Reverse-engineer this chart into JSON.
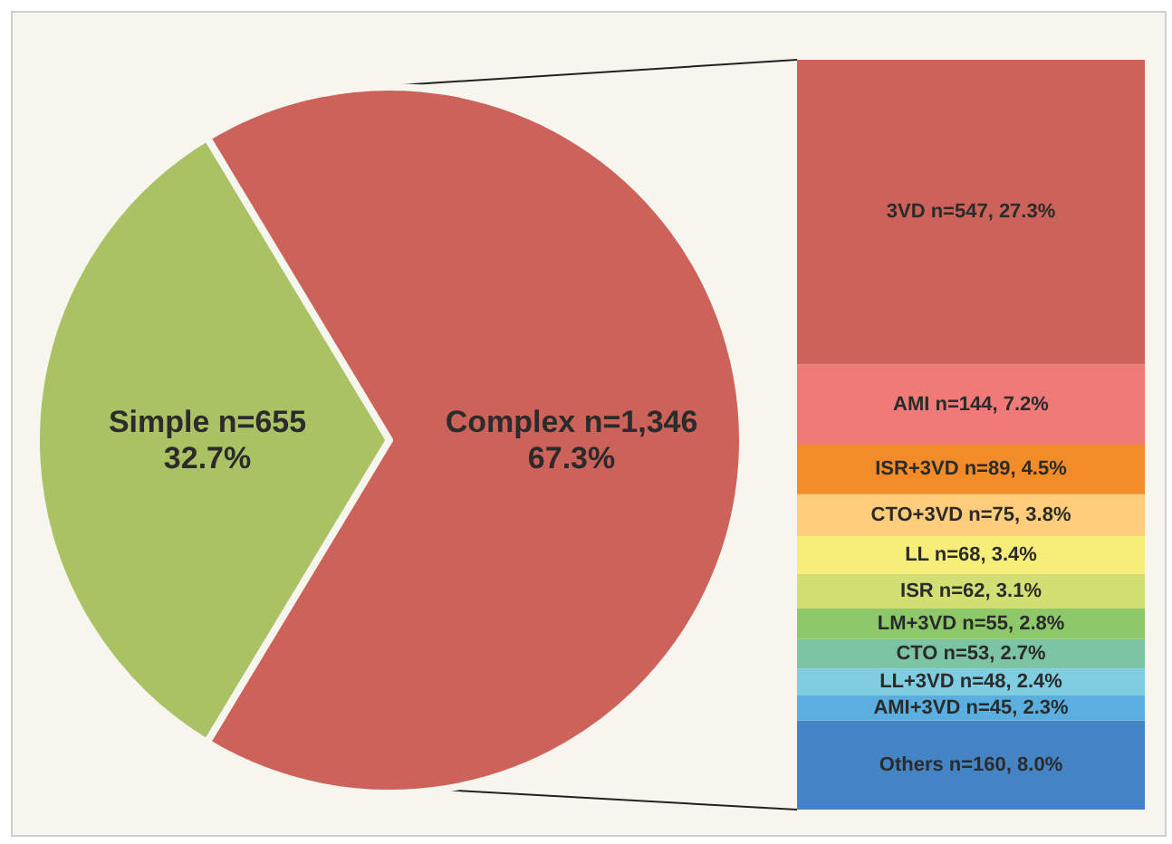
{
  "chart_data": [
    {
      "type": "pie",
      "categories": [
        "Simple",
        "Complex"
      ],
      "values": [
        655,
        1346
      ],
      "colors": [
        "#aac264",
        "#cd625a"
      ],
      "value_labels": [
        "n=655\n32.7%",
        "n=1,346\n67.3%"
      ]
    },
    {
      "type": "bar",
      "stacked": true,
      "categories": [
        null
      ],
      "series": [
        {
          "color": "#4584c4",
          "values": [
            160
          ],
          "value_labels": [
            "Others n=160, 8.0%"
          ]
        },
        {
          "color": "#5aafe0",
          "values": [
            45
          ],
          "value_labels": [
            "AMI+3VD n=45, 2.3%"
          ]
        },
        {
          "color": "#7fcde0",
          "values": [
            48
          ],
          "value_labels": [
            "LL+3VD n=48, 2.4%"
          ]
        },
        {
          "color": "#7cc4a3",
          "values": [
            53
          ],
          "value_labels": [
            "CTO n=53, 2.7%"
          ]
        },
        {
          "color": "#8cc968",
          "values": [
            55
          ],
          "value_labels": [
            "LM+3VD n=55, 2.8%"
          ]
        },
        {
          "color": "#d3df73",
          "values": [
            62
          ],
          "value_labels": [
            "ISR n=62, 3.1%"
          ]
        },
        {
          "color": "#f7ee7a",
          "values": [
            68
          ],
          "value_labels": [
            "LL n=68, 3.4%"
          ]
        },
        {
          "color": "#fdcd7a",
          "values": [
            75
          ],
          "value_labels": [
            "CTO+3VD n=75, 3.8%"
          ]
        },
        {
          "color": "#f28c28",
          "values": [
            89
          ],
          "value_labels": [
            "ISR+3VD n=89, 4.5%"
          ]
        },
        {
          "color": "#f07a78",
          "values": [
            144
          ],
          "value_labels": [
            "AMI n=144, 7.2%"
          ]
        },
        {
          "color": "#cd625a",
          "values": [
            547
          ],
          "value_labels": [
            "3VD n=547, 27.3%"
          ]
        }
      ]
    }
  ]
}
